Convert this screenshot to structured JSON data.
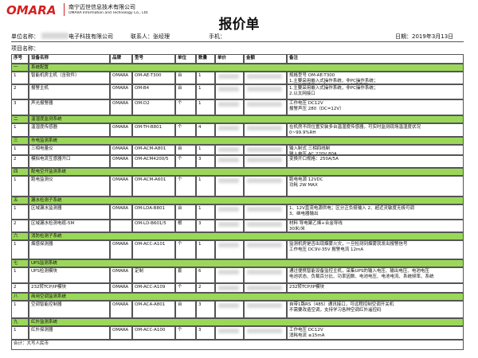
{
  "header": {
    "logo": "OMARA",
    "company_cn": "南宁迈世信息技术有限公司",
    "company_en": "OMARA Information and Technology Co., Ltd.",
    "title": "报价单"
  },
  "info": {
    "unit_label": "单位名称：",
    "unit_value": "电子科技有限公司",
    "contact": "联系人：张经理",
    "phone": "手机：",
    "date": "日期：2019年3月13日",
    "project": "项目名称："
  },
  "table": {
    "columns": [
      "序号",
      "设备名称",
      "品牌",
      "型号",
      "单位",
      "数量",
      "单价",
      "金额",
      "备注"
    ],
    "sections": [
      {
        "no": "一",
        "title": "系统配置",
        "items": [
          {
            "no": 1,
            "name": "智能机房主机（含软件）",
            "brand": "OMARA",
            "model": "OM-AE-T300",
            "unit": "台",
            "qty": 1,
            "notes": [
              "规格型号 OM-AE-T300",
              "1.主要采用嵌入式操作系统，非PC操作系统；",
              "2.以太网接口（1个10M/100M自适应口）"
            ]
          },
          {
            "no": 2,
            "name": "报警主机",
            "brand": "OMARA",
            "model": "OM-B4",
            "unit": "台",
            "qty": 1,
            "notes": [
              "1.主要采用嵌入式操作系统，非PC操作系统；",
              "2.以太网接口"
            ]
          },
          {
            "no": 3,
            "name": "声光报警器",
            "brand": "OMARA",
            "model": "OM-D2",
            "unit": "个",
            "qty": 1,
            "notes": [
              "工作电压 DC12V",
              "报警声压 280（DC=12V）"
            ]
          }
        ]
      },
      {
        "no": "二",
        "title": "温湿度监测系统",
        "items": [
          {
            "no": 1,
            "name": "温湿度传感器",
            "brand": "OMARA",
            "model": "OM-TH-B801",
            "unit": "个",
            "qty": 4,
            "notes": [
              "在机房不同位置安装多台温湿度传感器，可实时监测现场温湿度状况",
              "0~99.9%RH"
            ]
          }
        ]
      },
      {
        "no": "三",
        "title": "市电监测系统",
        "items": [
          {
            "no": 1,
            "name": "三相电量仪",
            "brand": "OMARA",
            "model": "OM-ACM-A801",
            "unit": "台",
            "qty": 1,
            "notes": [
              "输入制式 三相四线制",
              "输入电压 AC 220V,80A"
            ]
          },
          {
            "no": 2,
            "name": "模拟电流互感器开口",
            "brand": "OMARA",
            "model": "OM-ACM4200/5",
            "unit": "个",
            "qty": 3,
            "notes": [
              "变换开口规格：250A/5A"
            ]
          }
        ]
      },
      {
        "no": "四",
        "title": "配电空开监测系统",
        "items": [
          {
            "no": 1,
            "name": "跑电监测仪",
            "brand": "OMARA",
            "model": "OM-ACM-A601",
            "unit": "个",
            "qty": 1,
            "notes": [
              "跑电电源 12VDC",
              "功耗 2W MAX"
            ]
          }
        ]
      },
      {
        "no": "五",
        "title": "漏水检测子系统",
        "items": [
          {
            "no": 1,
            "name": "区域漏水监测器",
            "brand": "OMARA",
            "model": "OM-LDA-B801",
            "unit": "台",
            "qty": 1,
            "notes": [
              "1、12V直流电源供电；区分正负极输入 2、超近灵敏度无极可调",
              "3、继电器输出"
            ]
          },
          {
            "no": 2,
            "name": "区域漏水检测电缆-5M",
            "brand": "",
            "model": "OM-LD-B601/5",
            "unit": "根",
            "qty": 3,
            "notes": [
              "材料  导电聚乙烯+合金导线",
              "30米/米"
            ]
          }
        ]
      },
      {
        "no": "六",
        "title": "消防检测子系统",
        "items": [
          {
            "no": 1,
            "name": "烟感探测器",
            "brand": "OMARA",
            "model": "OM-ACC-A101",
            "unit": "个",
            "qty": 1,
            "notes": [
              "监测机房是否出现烟雾火灾，一旦检测到烟雾就发出报警信号",
              "工作电压 DC9V-35V  报警电流 12mA"
            ]
          }
        ]
      },
      {
        "no": "七",
        "title": "UPS监测系统",
        "items": [
          {
            "no": 1,
            "name": "UPS检测模块",
            "brand": "OMARA",
            "model": "定制",
            "unit": "套",
            "qty": 6,
            "notes": [
              "通过便携智能设备监控主机，采集UPS的输入电压、输出电压、电池电压",
              "电池状态、负载百分比、功率因数、电池电压、电池电流、系统频率、系统"
            ]
          },
          {
            "no": 2,
            "name": "232转TCP/IP模块",
            "brand": "OMARA",
            "model": "OM-ACC-A109",
            "unit": "个",
            "qty": 2,
            "notes": [
              "232转TCP/IP模块"
            ]
          }
        ]
      },
      {
        "no": "八",
        "title": "商用空调监测系统",
        "items": [
          {
            "no": 1,
            "name": "空调智能控制器",
            "brand": "OMARA",
            "model": "OM-ACA-A801",
            "unit": "台",
            "qty": 3,
            "notes": [
              "自带1路RS（485）通讯接口，可远程控制空调开关机",
              "不需要改造空调，支持学习各种空调红外遥控码"
            ]
          }
        ]
      },
      {
        "no": "九",
        "title": "红外监测系统",
        "items": [
          {
            "no": 1,
            "name": "红外探测器",
            "brand": "OMARA",
            "model": "OM-ACC-A100",
            "unit": "个",
            "qty": 3,
            "notes": [
              "工作电压 DC12V",
              "消耗电流 ≤15mA"
            ]
          }
        ]
      }
    ],
    "total": "合计：大写人民币"
  }
}
